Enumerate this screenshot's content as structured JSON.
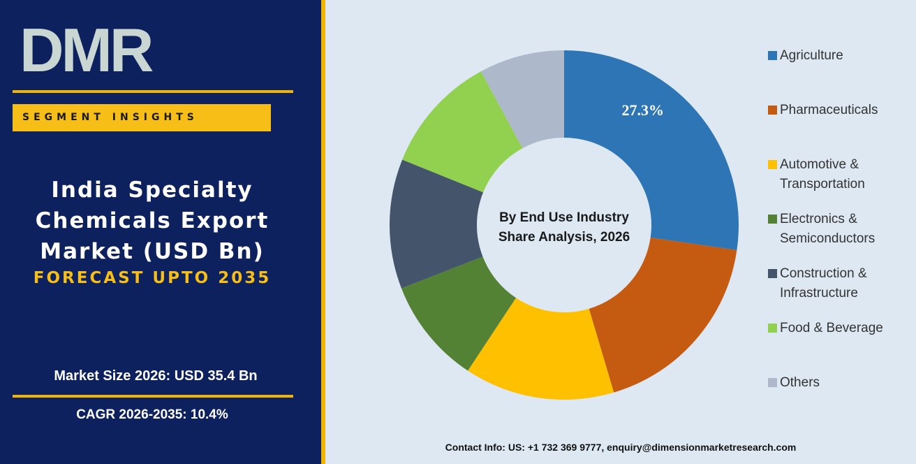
{
  "panel": {
    "logo": "DMR",
    "badge": "SEGMENT INSIGHTS",
    "title_lines": [
      "India Specialty",
      "Chemicals Export",
      "Market (USD Bn)"
    ],
    "forecast": "FORECAST UPTO 2035",
    "market_size": "Market Size 2026: USD 35.4 Bn",
    "cagr": "CAGR 2026-2035: 10.4%"
  },
  "contact": "Contact Info: US: +1 732 369 9777, enquiry@dimensionmarketresearch.com",
  "chart_data": {
    "type": "donut",
    "center_label_lines": [
      "By End Use Industry",
      "Share Analysis, 2026"
    ],
    "categories": [
      "Agriculture",
      "Pharmaceuticals",
      "Automotive & Transportation",
      "Electronics & Semiconductors",
      "Construction & Infrastructure",
      "Food & Beverage",
      "Others"
    ],
    "values": [
      27.3,
      18.1,
      13.9,
      9.8,
      12.0,
      11.0,
      7.9
    ],
    "value_labels": [
      "27.3%",
      null,
      null,
      null,
      null,
      null,
      null
    ],
    "colors": [
      "#2e75b6",
      "#c55a11",
      "#ffc000",
      "#548235",
      "#44546a",
      "#92d050",
      "#adb9ca"
    ],
    "legend": "right"
  }
}
